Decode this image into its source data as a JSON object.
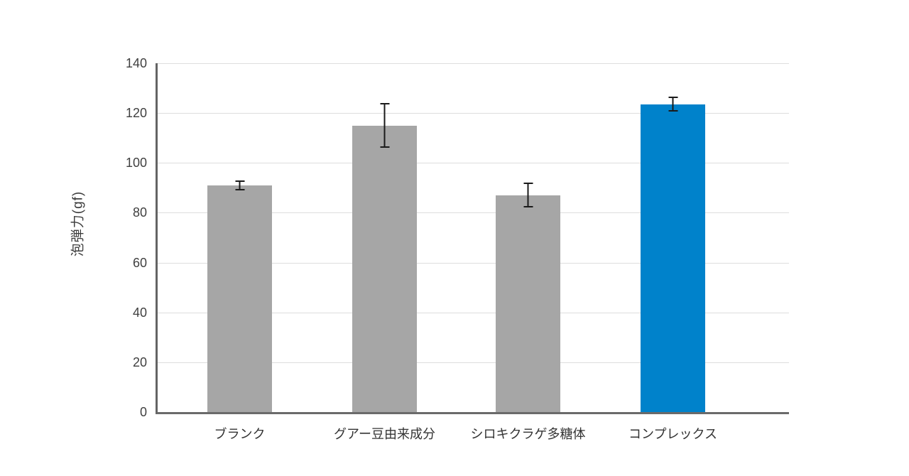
{
  "chart_data": {
    "type": "bar",
    "title": "",
    "xlabel": "",
    "ylabel": "泡弾力(gf)",
    "ylim": [
      0,
      140
    ],
    "yticks": [
      0,
      20,
      40,
      60,
      80,
      100,
      120,
      140
    ],
    "categories": [
      "ブランク",
      "グアー豆由来成分",
      "シロキクラゲ多糖体",
      "コンプレックス"
    ],
    "values": [
      91,
      115,
      87,
      123.5
    ],
    "error_bars": [
      2,
      9,
      5,
      3
    ],
    "bar_colors": [
      "#a6a6a6",
      "#a6a6a6",
      "#a6a6a6",
      "#0082cb"
    ],
    "grid": true,
    "legend_position": "none"
  },
  "colors": {
    "bar_gray": "#a6a6a6",
    "bar_highlight_blue": "#0082cb",
    "axis": "#646464",
    "gridline": "#dedede",
    "error_bar": "#1a1a1a",
    "text": "#3d3d3d",
    "background": "#ffffff"
  }
}
